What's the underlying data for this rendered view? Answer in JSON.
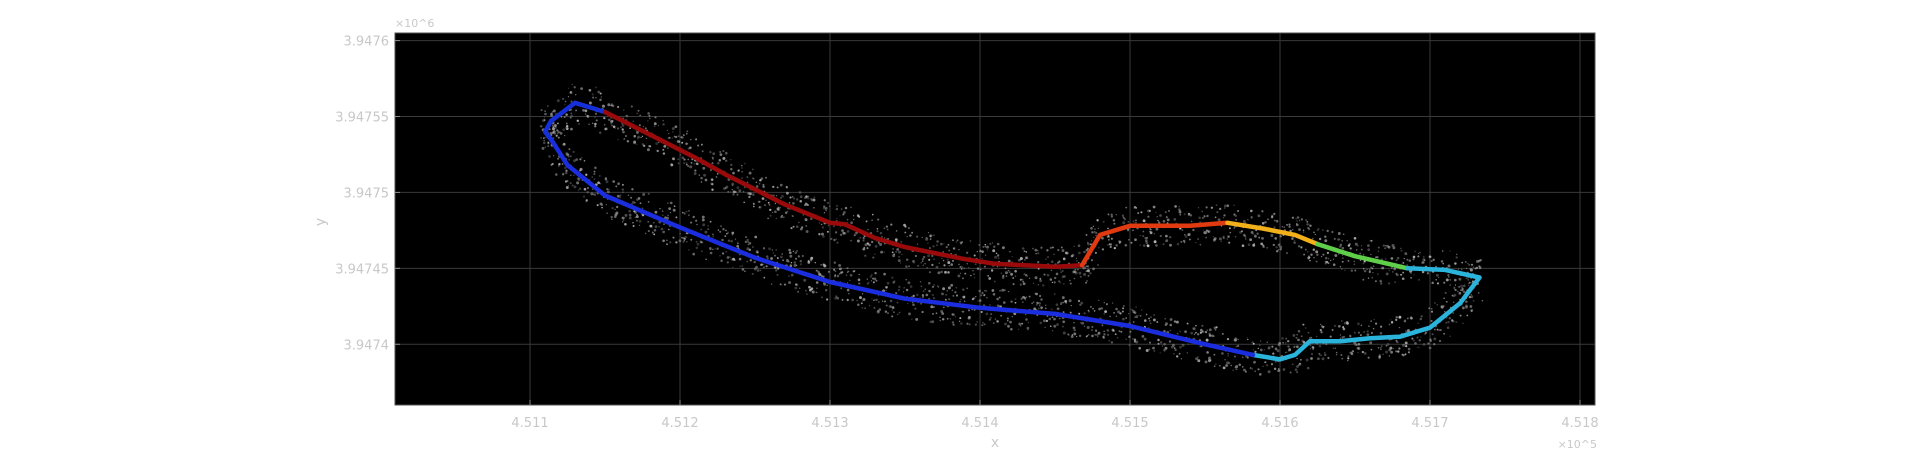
{
  "chart_data": {
    "type": "line",
    "title": "",
    "xlabel": "x",
    "ylabel": "y",
    "x_exponent_label": "×10^5",
    "y_exponent_label": "×10^6",
    "xlim": [
      4.5101,
      4.5181
    ],
    "ylim": [
      3.94736,
      3.947605
    ],
    "x_ticks": [
      {
        "value": 4.511,
        "label": "4.511"
      },
      {
        "value": 4.512,
        "label": "4.512"
      },
      {
        "value": 4.513,
        "label": "4.513"
      },
      {
        "value": 4.514,
        "label": "4.514"
      },
      {
        "value": 4.515,
        "label": "4.515"
      },
      {
        "value": 4.516,
        "label": "4.516"
      },
      {
        "value": 4.517,
        "label": "4.517"
      },
      {
        "value": 4.518,
        "label": "4.518"
      }
    ],
    "y_ticks": [
      {
        "value": 3.9474,
        "label": "3.9474"
      },
      {
        "value": 3.94745,
        "label": "3.94745"
      },
      {
        "value": 3.9475,
        "label": "3.9475"
      },
      {
        "value": 3.94755,
        "label": "3.94755"
      },
      {
        "value": 3.9476,
        "label": "3.9476"
      }
    ],
    "grid": true,
    "background_color": "#000000",
    "grid_color": "#3a3a3a",
    "point_cloud_color": "#b0b0b0",
    "series": [
      {
        "color": "#1530d8",
        "x": [
          4.51114,
          4.5113,
          4.5115
        ],
        "y": [
          3.947547,
          3.947559,
          3.947553
        ]
      },
      {
        "color": "#9a0a0a",
        "x": [
          4.5115,
          4.5117,
          4.5119,
          4.5121,
          4.5123,
          4.5125,
          4.5127,
          4.5129,
          4.513,
          4.5131,
          4.5133,
          4.5135,
          4.5137,
          4.5139,
          4.5141,
          4.5143,
          4.5145,
          4.51468
        ],
        "y": [
          3.947553,
          3.947543,
          3.947533,
          3.947523,
          3.947512,
          3.947502,
          3.947492,
          3.947484,
          3.94748,
          3.947479,
          3.94747,
          3.947464,
          3.94746,
          3.947456,
          3.947453,
          3.947452,
          3.947451,
          3.947452
        ]
      },
      {
        "color": "#e23a10",
        "x": [
          4.51468,
          4.5148,
          4.515,
          4.5152,
          4.5154,
          4.51565
        ],
        "y": [
          3.947452,
          3.947472,
          3.947478,
          3.947478,
          3.947478,
          3.94748
        ]
      },
      {
        "color": "#f2b01a",
        "x": [
          4.51565,
          4.5159,
          4.5161,
          4.51625
        ],
        "y": [
          3.94748,
          3.947476,
          3.947472,
          3.947466
        ]
      },
      {
        "color": "#5fcf4a",
        "x": [
          4.51625,
          4.5165,
          4.51685
        ],
        "y": [
          3.947466,
          3.947458,
          3.94745
        ]
      },
      {
        "color": "#2ab4dc",
        "x": [
          4.51685,
          4.5171,
          4.51733,
          4.5172,
          4.517,
          4.5168,
          4.5166,
          4.5164,
          4.5162,
          4.5161,
          4.516,
          4.51582
        ],
        "y": [
          3.94745,
          3.947449,
          3.947444,
          3.947427,
          3.947411,
          3.947405,
          3.947404,
          3.947402,
          3.947402,
          3.947393,
          3.94739,
          3.947393
        ]
      },
      {
        "color": "#1a2ee0",
        "x": [
          4.51582,
          4.5155,
          4.515,
          4.5145,
          4.514,
          4.5135,
          4.513,
          4.5125,
          4.512,
          4.5115,
          4.51125,
          4.51114
        ],
        "y": [
          3.947393,
          3.9474,
          3.947412,
          3.94742,
          3.947424,
          3.94743,
          3.947441,
          3.947457,
          3.947477,
          3.947498,
          3.947518,
          3.947535
        ]
      },
      {
        "color": "#1530d8",
        "x": [
          4.51114,
          4.5111,
          4.51114
        ],
        "y": [
          3.947535,
          3.94754,
          3.947547
        ]
      }
    ]
  }
}
